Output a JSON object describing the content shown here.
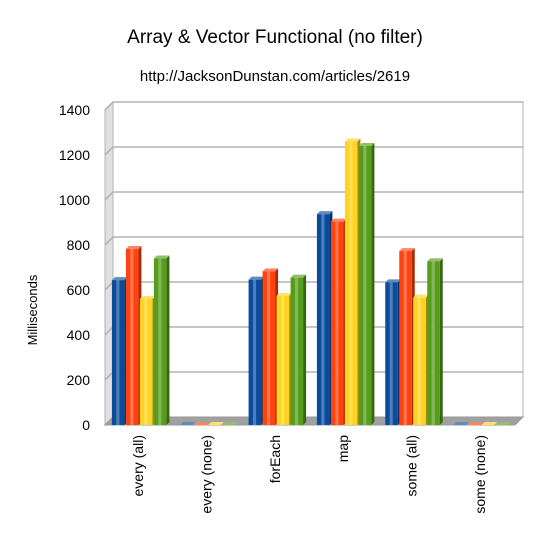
{
  "chart_data": {
    "type": "bar",
    "title": "Array & Vector Functional (no filter)",
    "subtitle": "http://JacksonDunstan.com/articles/2619",
    "xlabel": "",
    "ylabel": "Milliseconds",
    "ylim": [
      0,
      1400
    ],
    "yticks": [
      0,
      200,
      400,
      600,
      800,
      1000,
      1200,
      1400
    ],
    "grid": true,
    "legend": "none",
    "categories": [
      "every (all)",
      "every (none)",
      "forEach",
      "map",
      "some (all)",
      "some (none)"
    ],
    "series": [
      {
        "color": "#0a4c9c",
        "values": [
          644,
          0,
          646,
          937,
          634,
          0
        ]
      },
      {
        "color": "#ff420e",
        "values": [
          782,
          0,
          683,
          904,
          773,
          0
        ]
      },
      {
        "color": "#ffd320",
        "values": [
          560,
          0,
          574,
          1260,
          566,
          0
        ]
      },
      {
        "color": "#579d1c",
        "values": [
          740,
          0,
          655,
          1240,
          728,
          0
        ]
      }
    ]
  }
}
